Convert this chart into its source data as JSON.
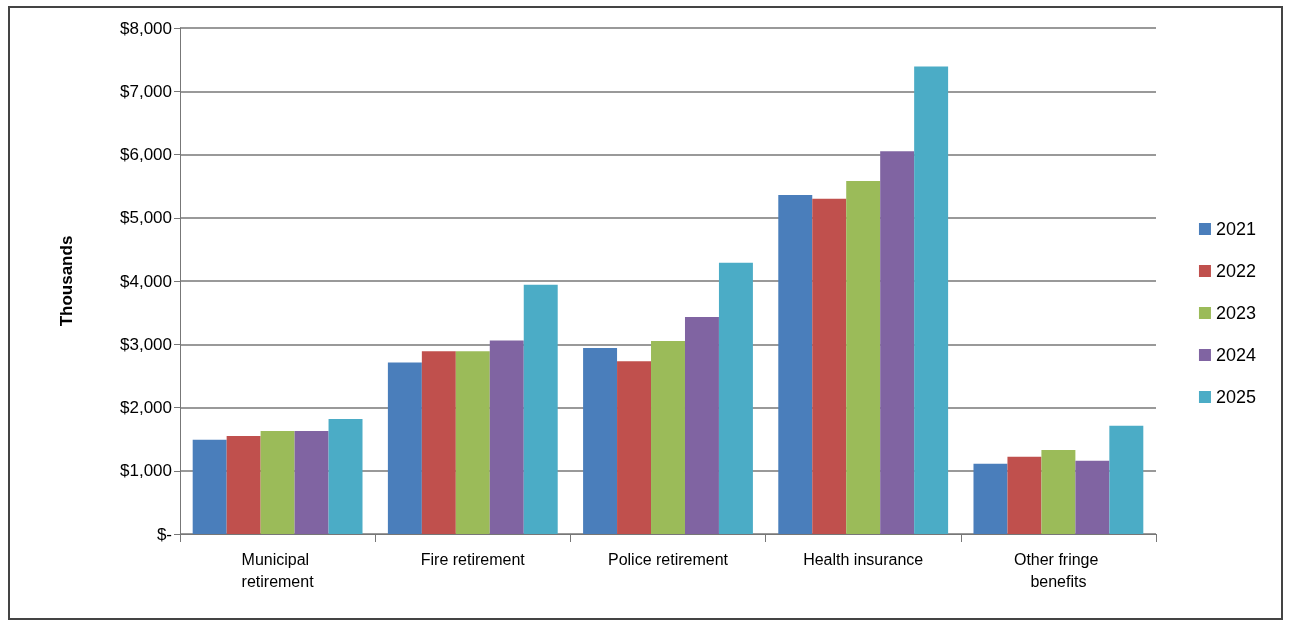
{
  "chart_data": {
    "type": "bar",
    "ylabel": "Thousands",
    "categories": [
      "Municipal retirement",
      "Fire retirement",
      "Police retirement",
      "Health insurance",
      "Other fringe benefits"
    ],
    "series": [
      {
        "name": "2021",
        "color": "#4a7ebb",
        "values": [
          1490,
          2710,
          2940,
          5360,
          1110
        ]
      },
      {
        "name": "2022",
        "color": "#c0504d",
        "values": [
          1550,
          2890,
          2730,
          5300,
          1220
        ]
      },
      {
        "name": "2023",
        "color": "#9bbb59",
        "values": [
          1630,
          2890,
          3050,
          5580,
          1330
        ]
      },
      {
        "name": "2024",
        "color": "#8064a2",
        "values": [
          1630,
          3060,
          3430,
          6050,
          1160
        ]
      },
      {
        "name": "2025",
        "color": "#4bacc6",
        "values": [
          1820,
          3940,
          4290,
          7390,
          1710
        ]
      }
    ],
    "ylim": [
      0,
      8000
    ],
    "yticks": [
      {
        "value": 0,
        "label": "$-"
      },
      {
        "value": 1000,
        "label": "$1,000"
      },
      {
        "value": 2000,
        "label": "$2,000"
      },
      {
        "value": 3000,
        "label": "$3,000"
      },
      {
        "value": 4000,
        "label": "$4,000"
      },
      {
        "value": 5000,
        "label": "$5,000"
      },
      {
        "value": 6000,
        "label": "$6,000"
      },
      {
        "value": 7000,
        "label": "$7,000"
      },
      {
        "value": 8000,
        "label": "$8,000"
      }
    ],
    "grid": "y",
    "legend": "right"
  }
}
